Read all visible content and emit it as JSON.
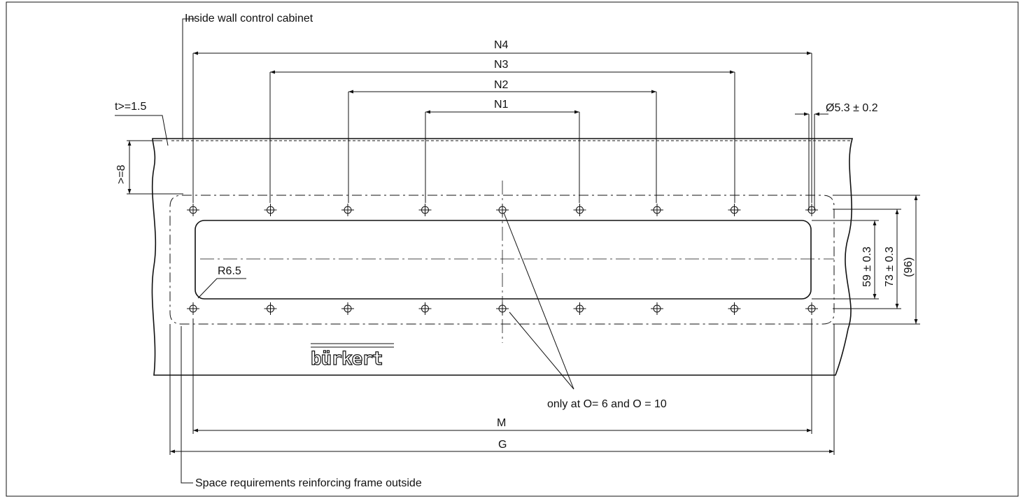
{
  "labels": {
    "inside_wall": "Inside wall control cabinet",
    "space_req": "Space requirements reinforcing frame outside",
    "thickness": "t>=1.5",
    "min_gap": ">=8",
    "n1": "N1",
    "n2": "N2",
    "n3": "N3",
    "n4": "N4",
    "hole_dia": "Ø5.3 ± 0.2",
    "radius": "R6.5",
    "dim_59": "59 ± 0.3",
    "dim_73": "73 ± 0.3",
    "dim_96": "(96)",
    "only_at": "only at O= 6 and O = 10",
    "m": "M",
    "g": "G",
    "logo": "bürkert"
  },
  "holes": {
    "count_per_row": 9,
    "rows": 2
  }
}
